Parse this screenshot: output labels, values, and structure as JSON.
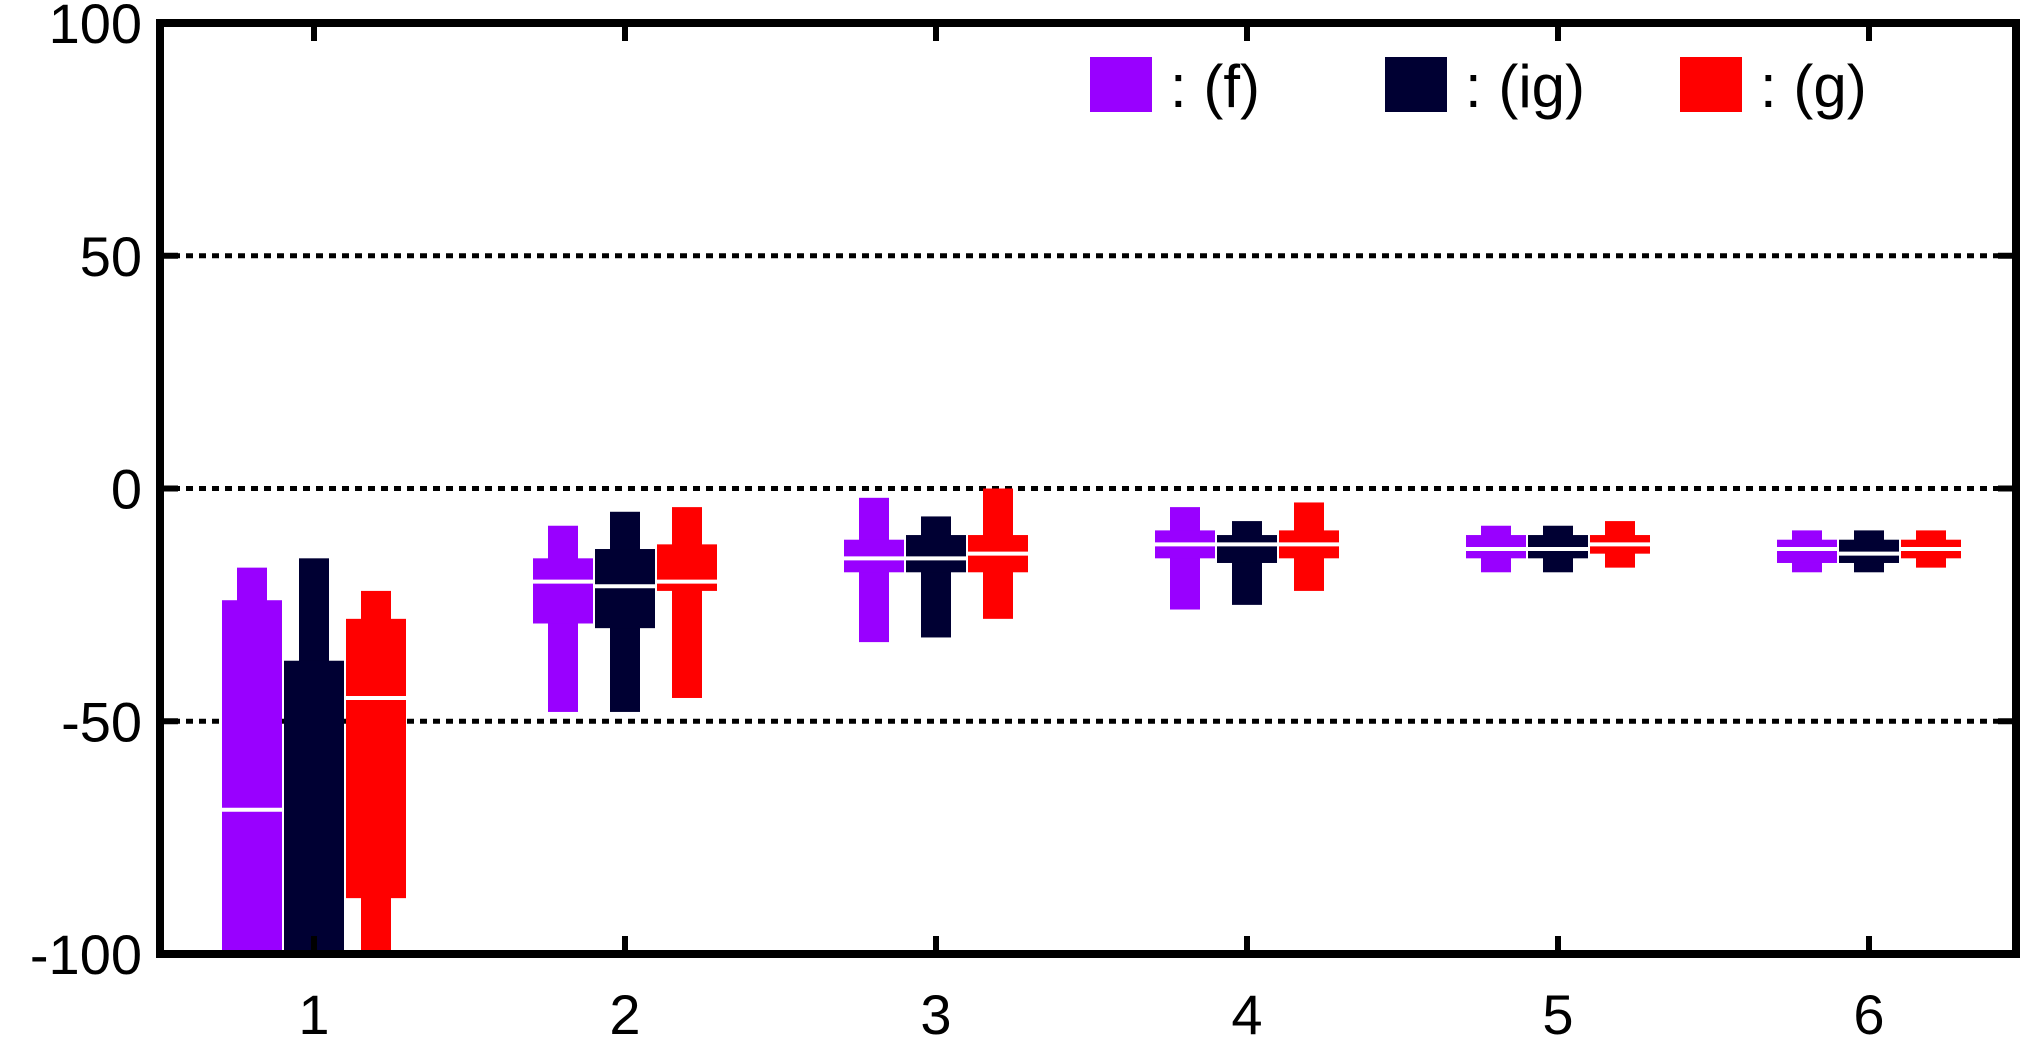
{
  "chart_data": {
    "type": "boxplot",
    "title": "",
    "xlabel": "",
    "ylabel": "",
    "categories": [
      "1",
      "2",
      "3",
      "4",
      "5",
      "6"
    ],
    "ylim": [
      -100,
      100
    ],
    "yticks": [
      {
        "value": 100,
        "label": "100"
      },
      {
        "value": 50,
        "label": "50"
      },
      {
        "value": 0,
        "label": "0"
      },
      {
        "value": -50,
        "label": "-50"
      },
      {
        "value": -100,
        "label": "-100"
      }
    ],
    "grid": {
      "y": [
        50,
        0,
        -50
      ],
      "style": "dotted"
    },
    "legend_placement": "top-right",
    "series": [
      {
        "name": ": (f)",
        "color": "#9900ff",
        "boxes": [
          {
            "whisker_low": -100,
            "q1": -100,
            "median": -69,
            "q3": -24,
            "whisker_high": -17
          },
          {
            "whisker_low": -48,
            "q1": -29,
            "median": -20,
            "q3": -15,
            "whisker_high": -8
          },
          {
            "whisker_low": -33,
            "q1": -18,
            "median": -15,
            "q3": -11,
            "whisker_high": -2
          },
          {
            "whisker_low": -26,
            "q1": -15,
            "median": -12,
            "q3": -9,
            "whisker_high": -4
          },
          {
            "whisker_low": -18,
            "q1": -15,
            "median": -13,
            "q3": -10,
            "whisker_high": -8
          },
          {
            "whisker_low": -18,
            "q1": -16,
            "median": -13,
            "q3": -11,
            "whisker_high": -9
          }
        ]
      },
      {
        "name": ": (ig)",
        "color": "#000033",
        "boxes": [
          {
            "whisker_low": -100,
            "q1": -100,
            "median": -100,
            "q3": -37,
            "whisker_high": -15
          },
          {
            "whisker_low": -48,
            "q1": -30,
            "median": -21,
            "q3": -13,
            "whisker_high": -5
          },
          {
            "whisker_low": -32,
            "q1": -18,
            "median": -15,
            "q3": -10,
            "whisker_high": -6
          },
          {
            "whisker_low": -25,
            "q1": -16,
            "median": -12,
            "q3": -10,
            "whisker_high": -7
          },
          {
            "whisker_low": -18,
            "q1": -15,
            "median": -13,
            "q3": -10,
            "whisker_high": -8
          },
          {
            "whisker_low": -18,
            "q1": -16,
            "median": -14,
            "q3": -11,
            "whisker_high": -9
          }
        ]
      },
      {
        "name": ": (g)",
        "color": "#ff0000",
        "boxes": [
          {
            "whisker_low": -100,
            "q1": -88,
            "median": -45,
            "q3": -28,
            "whisker_high": -22
          },
          {
            "whisker_low": -45,
            "q1": -22,
            "median": -20,
            "q3": -12,
            "whisker_high": -4
          },
          {
            "whisker_low": -28,
            "q1": -18,
            "median": -14,
            "q3": -10,
            "whisker_high": 0
          },
          {
            "whisker_low": -22,
            "q1": -15,
            "median": -12,
            "q3": -9,
            "whisker_high": -3
          },
          {
            "whisker_low": -17,
            "q1": -14,
            "median": -12,
            "q3": -10,
            "whisker_high": -7
          },
          {
            "whisker_low": -17,
            "q1": -15,
            "median": -13,
            "q3": -11,
            "whisker_high": -9
          }
        ]
      }
    ]
  }
}
